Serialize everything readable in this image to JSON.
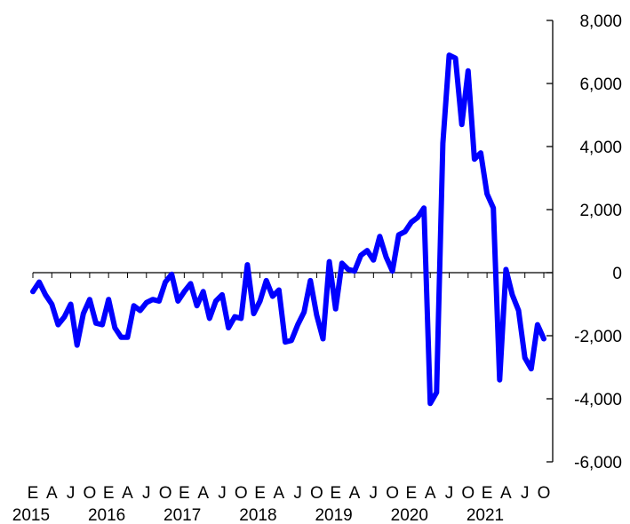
{
  "chart_data": {
    "type": "line",
    "title": "",
    "xlabel": "",
    "ylabel": "",
    "ylim": [
      -6000,
      8000
    ],
    "y_ticks": [
      8000,
      6000,
      4000,
      2000,
      0,
      -2000,
      -4000,
      -6000
    ],
    "y_tick_labels": [
      "8,000",
      "6,000",
      "4,000",
      "2,000",
      "0",
      "-2,000",
      "-4,000",
      "-6,000"
    ],
    "y_axis_position": "right",
    "grid": false,
    "legend": "none",
    "x_start": "2015-01",
    "x_end": "2021-12",
    "x_month_letters": [
      "E",
      "A",
      "J",
      "O"
    ],
    "x_month_letter_positions": [
      1,
      4,
      7,
      10
    ],
    "year_labels": [
      "2015",
      "2016",
      "2017",
      "2018",
      "2019",
      "2020",
      "2021"
    ],
    "series": [
      {
        "color": "#0000ff",
        "values": [
          -600,
          -300,
          -700,
          -1000,
          -1650,
          -1400,
          -1000,
          -2300,
          -1300,
          -850,
          -1600,
          -1650,
          -850,
          -1750,
          -2050,
          -2050,
          -1050,
          -1200,
          -950,
          -850,
          -900,
          -300,
          -50,
          -900,
          -600,
          -350,
          -1050,
          -600,
          -1450,
          -900,
          -700,
          -1750,
          -1400,
          -1450,
          250,
          -1300,
          -900,
          -250,
          -750,
          -550,
          -2200,
          -2150,
          -1650,
          -1250,
          -250,
          -1350,
          -2100,
          350,
          -1150,
          300,
          100,
          50,
          550,
          700,
          400,
          1150,
          500,
          50,
          1200,
          1300,
          1600,
          1750,
          2050,
          -4150,
          -3800,
          4100,
          6900,
          6800,
          4700,
          6400,
          3600,
          3800,
          2500,
          2050,
          -3400,
          100,
          -700,
          -1200,
          -2700,
          -3050,
          -1650,
          -2100
        ]
      }
    ]
  }
}
